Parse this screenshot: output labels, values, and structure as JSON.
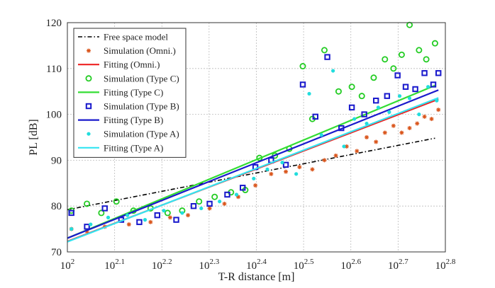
{
  "chart_data": {
    "type": "scatter",
    "title": "",
    "xlabel": "T-R distance [m]",
    "ylabel": "PL [dB]",
    "x_scale": "log10",
    "xlim": [
      100,
      631
    ],
    "ylim": [
      70,
      120
    ],
    "grid": true,
    "legend_position": "top-left",
    "x_ticks": [
      {
        "value": 100,
        "base": "10",
        "exp": "2"
      },
      {
        "value": 125.9,
        "base": "10",
        "exp": "2.1"
      },
      {
        "value": 158.5,
        "base": "10",
        "exp": "2.2"
      },
      {
        "value": 199.5,
        "base": "10",
        "exp": "2.3"
      },
      {
        "value": 251.2,
        "base": "10",
        "exp": "2.4"
      },
      {
        "value": 316.2,
        "base": "10",
        "exp": "2.5"
      },
      {
        "value": 398.1,
        "base": "10",
        "exp": "2.6"
      },
      {
        "value": 501.2,
        "base": "10",
        "exp": "2.7"
      },
      {
        "value": 631.0,
        "base": "10",
        "exp": "2.8"
      }
    ],
    "y_ticks": [
      "70",
      "80",
      "90",
      "100",
      "110",
      "120"
    ],
    "y_tick_values": [
      70,
      80,
      90,
      100,
      110,
      120
    ],
    "series": [
      {
        "name": "Free space model",
        "kind": "line",
        "color": "#000000",
        "dash": "dashdot",
        "x": [
          100,
          600
        ],
        "y": [
          79.2,
          94.8
        ]
      },
      {
        "name": "Simulation (Omni.)",
        "kind": "scatter",
        "marker": "asterisk",
        "color": "#d9541a",
        "x": [
          102,
          110,
          120,
          135,
          150,
          165,
          180,
          200,
          215,
          230,
          250,
          270,
          290,
          310,
          330,
          350,
          370,
          390,
          410,
          430,
          450,
          470,
          490,
          510,
          530,
          550,
          570,
          590,
          610
        ],
        "y": [
          75.0,
          74.5,
          75.5,
          76.0,
          76.5,
          77.5,
          78.0,
          79.5,
          80.5,
          82.0,
          84.5,
          87.0,
          87.5,
          88.5,
          88.0,
          90.0,
          91.0,
          93.0,
          92.0,
          95.0,
          94.0,
          96.0,
          97.5,
          96.0,
          97.0,
          98.0,
          99.5,
          99.0,
          101.0
        ]
      },
      {
        "name": "Fitting (Omni.)",
        "kind": "line",
        "color": "#ee2222",
        "dash": "solid",
        "x": [
          100,
          610
        ],
        "y": [
          72.3,
          103.3
        ]
      },
      {
        "name": "Simulation (Type C)",
        "kind": "scatter",
        "marker": "circle",
        "color": "#22cc22",
        "x": [
          102,
          110,
          118,
          127,
          138,
          150,
          163,
          175,
          190,
          205,
          222,
          238,
          255,
          275,
          295,
          315,
          330,
          350,
          375,
          400,
          420,
          445,
          470,
          490,
          510,
          530,
          555,
          575,
          600
        ],
        "y": [
          79.0,
          80.5,
          78.5,
          81.0,
          79.0,
          79.5,
          78.5,
          79.0,
          81.0,
          82.0,
          83.0,
          83.5,
          90.5,
          91.0,
          92.5,
          110.5,
          99.0,
          114.0,
          105.0,
          106.0,
          104.0,
          108.0,
          112.0,
          110.0,
          113.0,
          119.5,
          114.0,
          112.0,
          115.5
        ]
      },
      {
        "name": "Fitting (Type C)",
        "kind": "line",
        "color": "#33dd33",
        "dash": "solid",
        "x": [
          100,
          600
        ],
        "y": [
          73.0,
          106.3
        ]
      },
      {
        "name": "Simulation (Type B)",
        "kind": "scatter",
        "marker": "square",
        "color": "#1818cc",
        "x": [
          102,
          110,
          120,
          130,
          142,
          155,
          170,
          185,
          200,
          218,
          235,
          250,
          270,
          290,
          315,
          335,
          355,
          380,
          400,
          425,
          450,
          475,
          500,
          520,
          545,
          570,
          595,
          610
        ],
        "y": [
          78.5,
          75.5,
          79.5,
          77.0,
          76.5,
          78.0,
          77.0,
          80.0,
          80.5,
          82.5,
          84.0,
          88.5,
          90.0,
          89.0,
          106.5,
          99.5,
          112.5,
          97.0,
          101.5,
          100.0,
          103.0,
          104.0,
          108.5,
          106.0,
          105.5,
          109.0,
          106.5,
          109.0
        ]
      },
      {
        "name": "Fitting (Type B)",
        "kind": "line",
        "color": "#1a1acc",
        "dash": "solid",
        "x": [
          100,
          610
        ],
        "y": [
          73.0,
          105.3
        ]
      },
      {
        "name": "Simulation (Type A)",
        "kind": "scatter",
        "marker": "dot",
        "color": "#22dddd",
        "x": [
          102,
          112,
          122,
          134,
          146,
          160,
          175,
          192,
          210,
          228,
          248,
          265,
          285,
          305,
          325,
          345,
          365,
          385,
          405,
          430,
          455,
          480,
          505,
          530,
          555,
          580,
          605
        ],
        "y": [
          75.0,
          76.0,
          77.5,
          78.0,
          77.0,
          79.0,
          78.5,
          79.5,
          81.0,
          82.5,
          86.0,
          88.0,
          89.5,
          87.0,
          104.5,
          95.5,
          109.5,
          93.0,
          99.0,
          98.0,
          101.5,
          100.5,
          104.0,
          103.5,
          100.0,
          106.0,
          103.0
        ]
      },
      {
        "name": "Fitting (Type A)",
        "kind": "line",
        "color": "#33e5f2",
        "dash": "solid",
        "x": [
          100,
          610
        ],
        "y": [
          72.2,
          103.6
        ]
      }
    ]
  }
}
